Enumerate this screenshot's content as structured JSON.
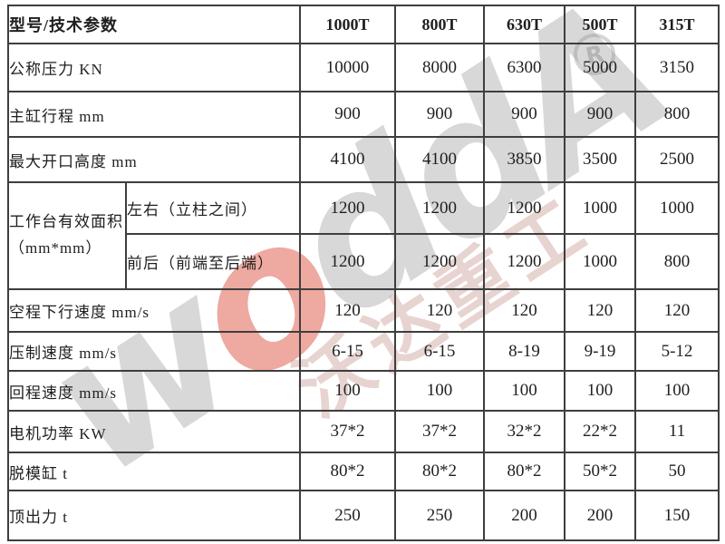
{
  "watermark": {
    "brand_letters": [
      "w",
      "o",
      "d",
      "d",
      "A"
    ],
    "red_letter_index": 1,
    "cn_text": "沃达重工",
    "registered_mark": "R",
    "grey_color": "#d9d9d9",
    "red_color": "#e2544a"
  },
  "table": {
    "header": {
      "param_label": "型号/技术参数",
      "models": [
        "1000T",
        "800T",
        "630T",
        "500T",
        "315T"
      ]
    },
    "rows": [
      {
        "type": "simple",
        "label": "公称压力 KN",
        "values": [
          "10000",
          "8000",
          "6300",
          "5000",
          "3150"
        ]
      },
      {
        "type": "simple",
        "label": "主缸行程 mm",
        "values": [
          "900",
          "900",
          "900",
          "900",
          "800"
        ]
      },
      {
        "type": "simple",
        "label": "最大开口高度 mm",
        "values": [
          "4100",
          "4100",
          "3850",
          "3500",
          "2500"
        ]
      },
      {
        "type": "group-first",
        "group_label": "工作台有效面积（mm*mm）",
        "sub_label": "左右（立柱之间）",
        "values": [
          "1200",
          "1200",
          "1200",
          "1000",
          "1000"
        ]
      },
      {
        "type": "group-second",
        "sub_label": "前后（前端至后端）",
        "values": [
          "1200",
          "1200",
          "1200",
          "1000",
          "800"
        ]
      },
      {
        "type": "simple",
        "label": "空程下行速度 mm/s",
        "values": [
          "120",
          "120",
          "120",
          "120",
          "120"
        ]
      },
      {
        "type": "simple",
        "label": "压制速度 mm/s",
        "values": [
          "6-15",
          "6-15",
          "8-19",
          "9-19",
          "5-12"
        ]
      },
      {
        "type": "simple",
        "label": "回程速度 mm/s",
        "values": [
          "100",
          "100",
          "100",
          "100",
          "100"
        ]
      },
      {
        "type": "simple",
        "label": "电机功率 KW",
        "values": [
          "37*2",
          "37*2",
          "32*2",
          "22*2",
          "11"
        ]
      },
      {
        "type": "simple",
        "label": "脱模缸 t",
        "values": [
          "80*2",
          "80*2",
          "80*2",
          "50*2",
          "50"
        ]
      },
      {
        "type": "simple",
        "label": "顶出力 t",
        "values": [
          "250",
          "250",
          "200",
          "200",
          "150"
        ]
      }
    ]
  }
}
